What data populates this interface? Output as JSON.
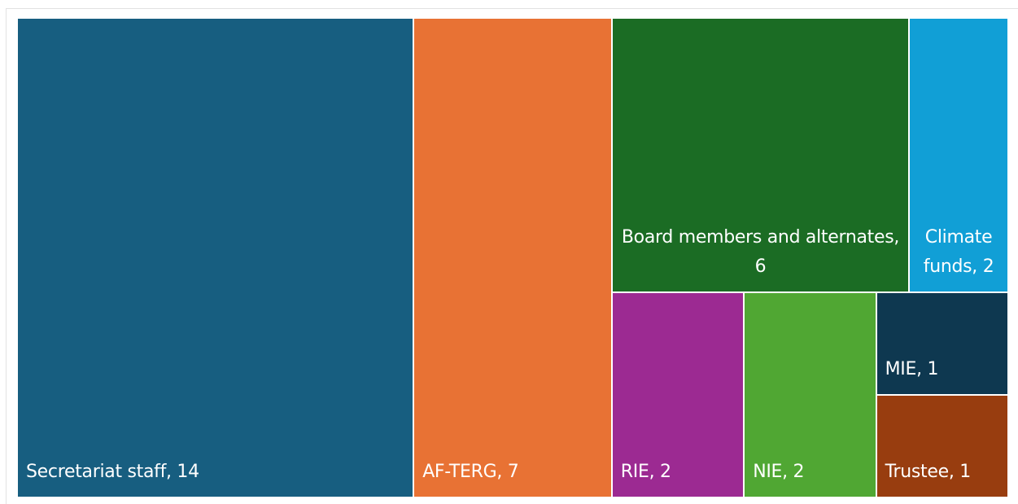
{
  "chart_data": {
    "type": "treemap",
    "values": [
      14,
      7,
      6,
      2,
      2,
      2,
      1,
      1
    ],
    "value_labels": [
      "Secretariat staff, 14",
      "AF-TERG, 7",
      "Board members and alternates, 6",
      "Climate funds, 2",
      "RIE, 2",
      "NIE, 2",
      "MIE, 1",
      "Trustee, 1"
    ],
    "colors": [
      "#175e80",
      "#e87234",
      "#1b6c24",
      "#119fd6",
      "#9c2a92",
      "#50a733",
      "#0e3850",
      "#983d0f"
    ]
  }
}
